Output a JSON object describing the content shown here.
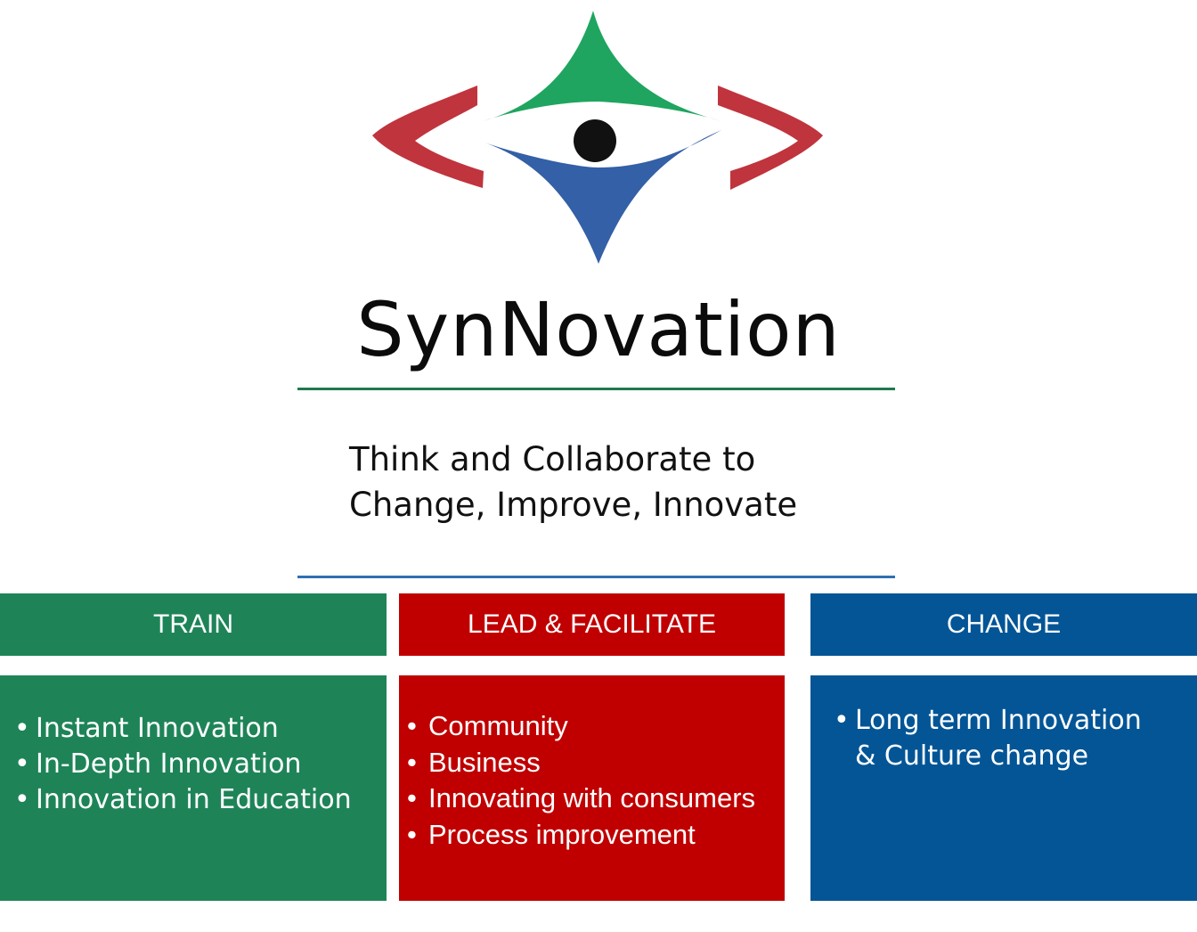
{
  "logo": {
    "icon": "synnovation-star-eye-icon",
    "colors": {
      "green": "#1fa55f",
      "blue": "#3360a6",
      "red": "#c0343d",
      "eye": "#111111"
    }
  },
  "brand": {
    "name": "SynNovation"
  },
  "tagline": {
    "line1": "Think and Collaborate to",
    "line2": "Change, Improve, Innovate"
  },
  "columns": [
    {
      "heading": "TRAIN",
      "color": "#1e8458",
      "items": [
        "Instant Innovation",
        "In-Depth Innovation",
        "Innovation in Education"
      ]
    },
    {
      "heading": "LEAD & FACILITATE",
      "color": "#c00000",
      "items": [
        "Community",
        "Business",
        "Innovating with consumers",
        "Process improvement"
      ]
    },
    {
      "heading": "CHANGE",
      "color": "#035596",
      "items": [
        "Long term Innovation\n& Culture change"
      ]
    }
  ],
  "rules": {
    "top_color": "#1f7a4c",
    "bottom_color": "#2f6fb5"
  }
}
